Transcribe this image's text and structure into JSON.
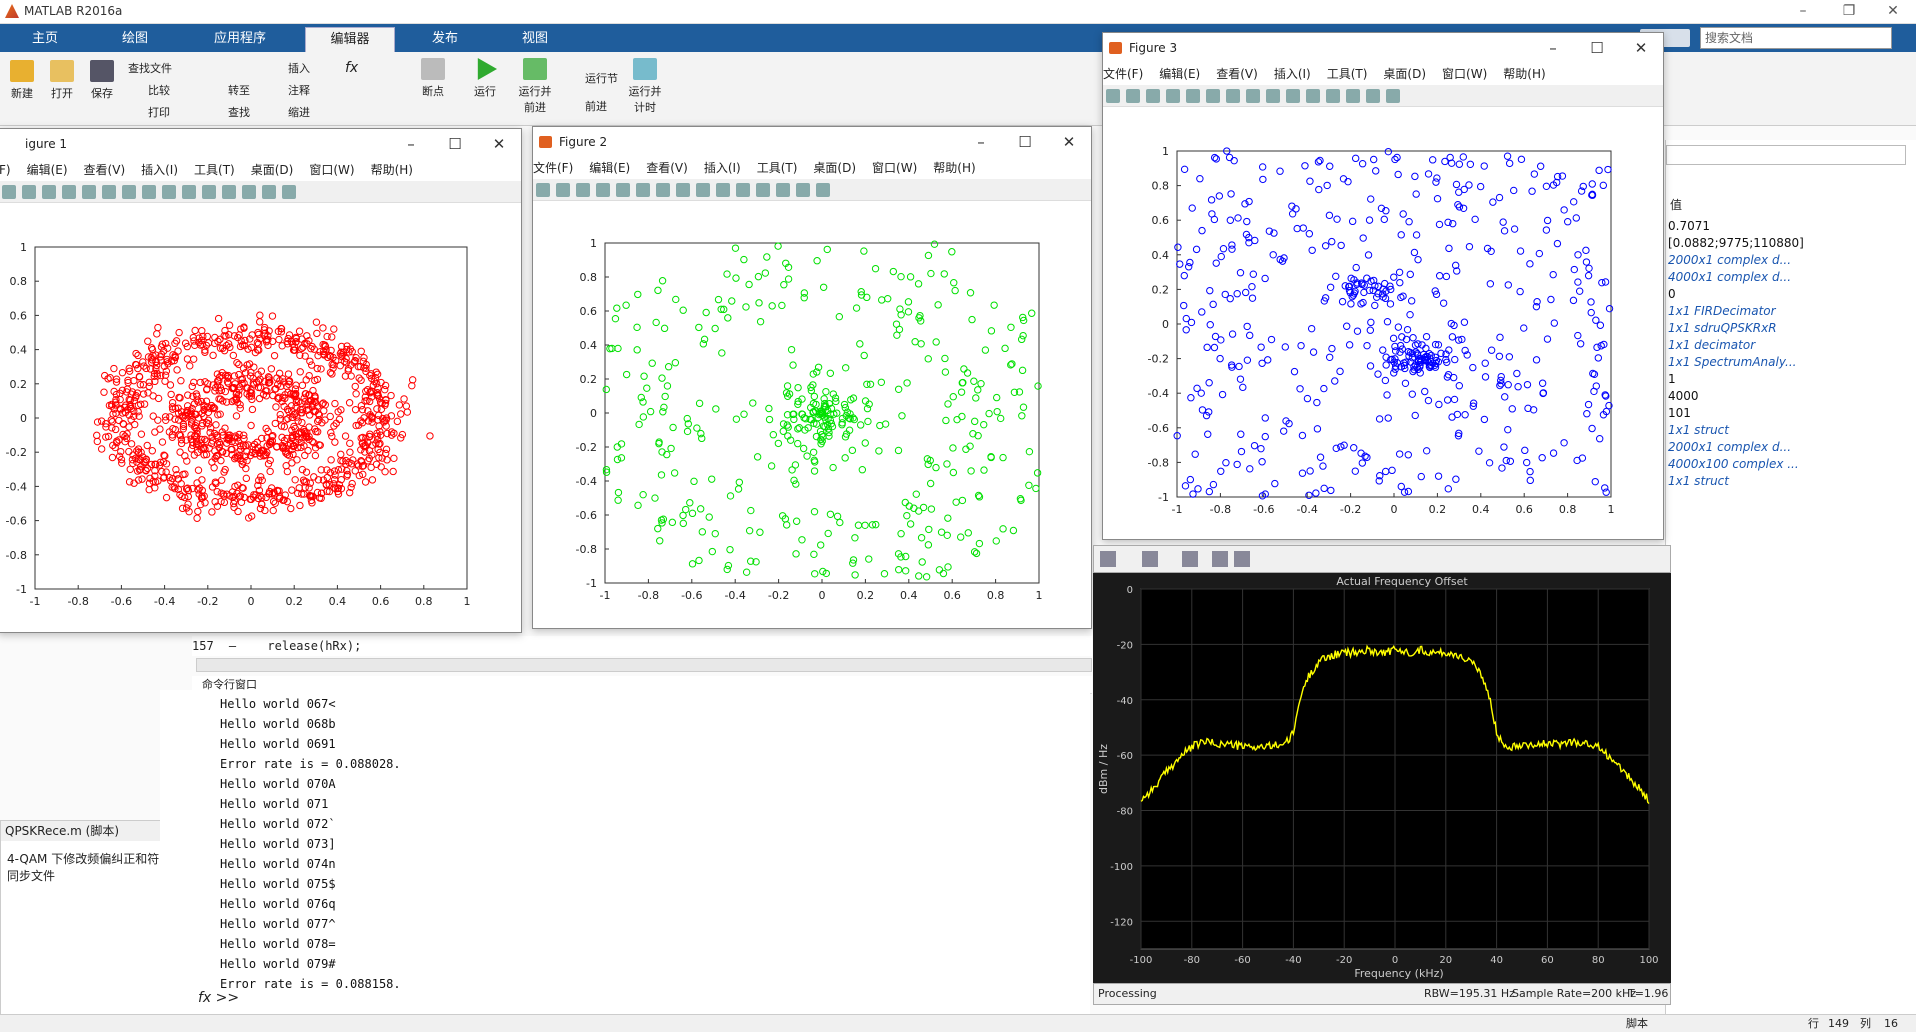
{
  "app": {
    "title": "MATLAB R2016a",
    "search_placeholder": "搜索文档"
  },
  "tabs": [
    "主页",
    "绘图",
    "应用程序",
    "编辑器",
    "发布",
    "视图"
  ],
  "ribbon": {
    "file_group": [
      "新建",
      "打开",
      "保存"
    ],
    "nav_group": [
      "查找文件",
      "比较",
      "打印",
      "转至",
      "查找"
    ],
    "edit_group": [
      "插入",
      "注释",
      "缩进"
    ],
    "breakpoints": "断点",
    "run": "运行",
    "run_advance": "运行并\n前进",
    "run_section": "运行节",
    "advance": "前进",
    "run_time": "运行并\n计时"
  },
  "figure1": {
    "title": "igure 1",
    "menu": [
      "F)",
      "编辑(E)",
      "查看(V)",
      "插入(I)",
      "工具(T)",
      "桌面(D)",
      "窗口(W)",
      "帮助(H)"
    ],
    "color": "#ff0000",
    "xticks": [
      "-1",
      "-0.8",
      "-0.6",
      "-0.4",
      "-0.2",
      "0",
      "0.2",
      "0.4",
      "0.6",
      "0.8",
      "1"
    ],
    "yticks": [
      "1",
      "0.8",
      "0.6",
      "0.4",
      "0.2",
      "0",
      "-0.2",
      "-0.4",
      "-0.6",
      "-0.8",
      "-1"
    ]
  },
  "figure2": {
    "title": "Figure 2",
    "menu": [
      "文件(F)",
      "编辑(E)",
      "查看(V)",
      "插入(I)",
      "工具(T)",
      "桌面(D)",
      "窗口(W)",
      "帮助(H)"
    ],
    "color": "#00e000",
    "xticks": [
      "-1",
      "-0.8",
      "-0.6",
      "-0.4",
      "-0.2",
      "0",
      "0.2",
      "0.4",
      "0.6",
      "0.8",
      "1"
    ],
    "yticks": [
      "1",
      "0.8",
      "0.6",
      "0.4",
      "0.2",
      "0",
      "-0.2",
      "-0.4",
      "-0.6",
      "-0.8",
      "-1"
    ]
  },
  "figure3": {
    "title": "Figure 3",
    "menu": [
      "文件(F)",
      "编辑(E)",
      "查看(V)",
      "插入(I)",
      "工具(T)",
      "桌面(D)",
      "窗口(W)",
      "帮助(H)"
    ],
    "color": "#0000ff",
    "xticks": [
      "-1",
      "-0.8",
      "-0.6",
      "-0.4",
      "-0.2",
      "0",
      "0.2",
      "0.4",
      "0.6",
      "0.8",
      "1"
    ],
    "yticks": [
      "1",
      "0.8",
      "0.6",
      "0.4",
      "0.2",
      "0",
      "-0.2",
      "-0.4",
      "-0.6",
      "-0.8",
      "-1"
    ]
  },
  "editor": {
    "line_no": "157",
    "line_mark": "–",
    "code": "release(hRx);"
  },
  "command": {
    "title": "命令行窗口",
    "prompt": "fx >>",
    "lines": [
      "Hello world 067<",
      "Hello world 068b",
      "Hello world 0691",
      "Error rate is = 0.088028.",
      "Hello world 070A",
      "Hello world 071",
      "Hello world 072`",
      "Hello world 073]",
      "Hello world 074n",
      "Hello world 075$",
      "Hello world 076q",
      "Hello world 077^",
      "Hello world 078=",
      "Hello world 079#",
      "Error rate is = 0.088158."
    ]
  },
  "details": {
    "file": "QPSKRece.m (脚本)",
    "desc": "4-QAM 下修改频偏纠正和符号同步文件"
  },
  "workspace": {
    "header": "值",
    "values": [
      {
        "v": "0.7071",
        "it": false
      },
      {
        "v": "[0.0882;9775;110880]",
        "it": false
      },
      {
        "v": "2000x1 complex d...",
        "it": true
      },
      {
        "v": "4000x1 complex d...",
        "it": true
      },
      {
        "v": "0",
        "it": false
      },
      {
        "v": "1x1 FIRDecimator",
        "it": true
      },
      {
        "v": "1x1 sdruQPSKRxR",
        "it": true
      },
      {
        "v": "1x1 decimator",
        "it": true
      },
      {
        "v": "1x1 SpectrumAnaly...",
        "it": true
      },
      {
        "v": "1",
        "it": false
      },
      {
        "v": "4000",
        "it": false
      },
      {
        "v": "101",
        "it": false
      },
      {
        "v": "1x1 struct",
        "it": true
      },
      {
        "v": "2000x1 complex d...",
        "it": true
      },
      {
        "v": "4000x100 complex ...",
        "it": true
      },
      {
        "v": "1x1 struct",
        "it": true
      }
    ]
  },
  "spectrum": {
    "title": "Actual Frequency Offset",
    "status": "Processing",
    "rbw": "RBW=195.31 Hz",
    "rate": "Sample Rate=200 kHz",
    "time": "T=1.96",
    "chart_data": {
      "type": "line",
      "title": "Actual Frequency Offset",
      "xlabel": "Frequency (kHz)",
      "ylabel": "dBm / Hz",
      "color": "#ffff00",
      "xlim": [
        -100,
        100
      ],
      "ylim": [
        -130,
        0
      ],
      "xticks": [
        "-100",
        "-80",
        "-60",
        "-40",
        "-20",
        "0",
        "20",
        "40",
        "60",
        "80",
        "100"
      ],
      "yticks": [
        "0",
        "-20",
        "-40",
        "-60",
        "-80",
        "-100",
        "-120"
      ],
      "x": [
        -100,
        -95,
        -90,
        -85,
        -80,
        -75,
        -70,
        -65,
        -60,
        -55,
        -50,
        -45,
        -42,
        -40,
        -38,
        -35,
        -30,
        -25,
        -20,
        -15,
        -10,
        -5,
        0,
        5,
        10,
        15,
        20,
        25,
        30,
        35,
        38,
        40,
        42,
        45,
        50,
        55,
        60,
        65,
        70,
        75,
        80,
        85,
        90,
        95,
        100
      ],
      "y": [
        -76,
        -72,
        -66,
        -61,
        -57,
        -55,
        -56,
        -56,
        -57,
        -57,
        -57,
        -56,
        -55,
        -52,
        -42,
        -33,
        -26,
        -24,
        -23,
        -23,
        -22,
        -23,
        -22,
        -23,
        -22,
        -23,
        -23,
        -24,
        -26,
        -33,
        -42,
        -52,
        -55,
        -57,
        -56,
        -56,
        -56,
        -56,
        -55,
        -56,
        -57,
        -61,
        -66,
        -71,
        -76
      ]
    }
  },
  "statusbar": {
    "script": "脚本",
    "row_label": "行",
    "row": "149",
    "col_label": "列",
    "col": "16"
  }
}
